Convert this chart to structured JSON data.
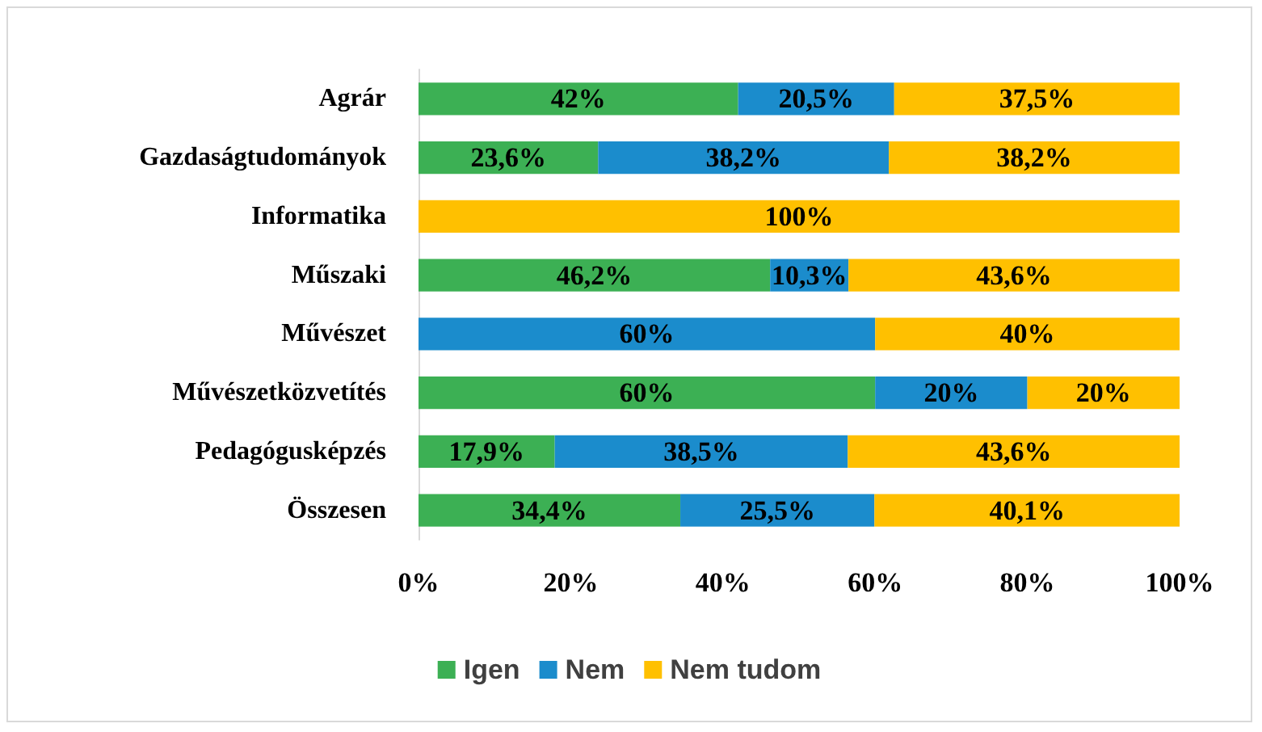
{
  "chart_data": {
    "type": "bar",
    "orientation": "horizontal",
    "stacked": true,
    "categories": [
      "Agrár",
      "Gazdaságtudományok",
      "Informatika",
      "Műszaki",
      "Művészet",
      "Művészetközvetítés",
      "Pedagógusképzés",
      "Összesen"
    ],
    "series": [
      {
        "name": "Igen",
        "color": "#3cb054",
        "values": [
          42,
          23.6,
          null,
          46.2,
          null,
          60,
          17.9,
          34.4
        ],
        "value_labels": [
          "42%",
          "23,6%",
          null,
          "46,2%",
          null,
          "60%",
          "17,9%",
          "34,4%"
        ]
      },
      {
        "name": "Nem",
        "color": "#1b8ccc",
        "values": [
          20.5,
          38.2,
          null,
          10.3,
          60,
          20,
          38.5,
          25.5
        ],
        "value_labels": [
          "20,5%",
          "38,2%",
          null,
          "10,3%",
          "60%",
          "20%",
          "38,5%",
          "25,5%"
        ]
      },
      {
        "name": "Nem tudom",
        "color": "#ffc000",
        "values": [
          37.5,
          38.2,
          100,
          43.6,
          40,
          20,
          43.6,
          40.1
        ],
        "value_labels": [
          "37,5%",
          "38,2%",
          "100%",
          "43,6%",
          "40%",
          "20%",
          "43,6%",
          "40,1%"
        ]
      }
    ],
    "xlim": [
      0,
      100
    ],
    "xticks": [
      {
        "value": 0,
        "label": "0%"
      },
      {
        "value": 20,
        "label": "20%"
      },
      {
        "value": 40,
        "label": "40%"
      },
      {
        "value": 60,
        "label": "60%"
      },
      {
        "value": 80,
        "label": "80%"
      },
      {
        "value": 100,
        "label": "100%"
      }
    ],
    "grid": false,
    "legend": "bottom"
  }
}
